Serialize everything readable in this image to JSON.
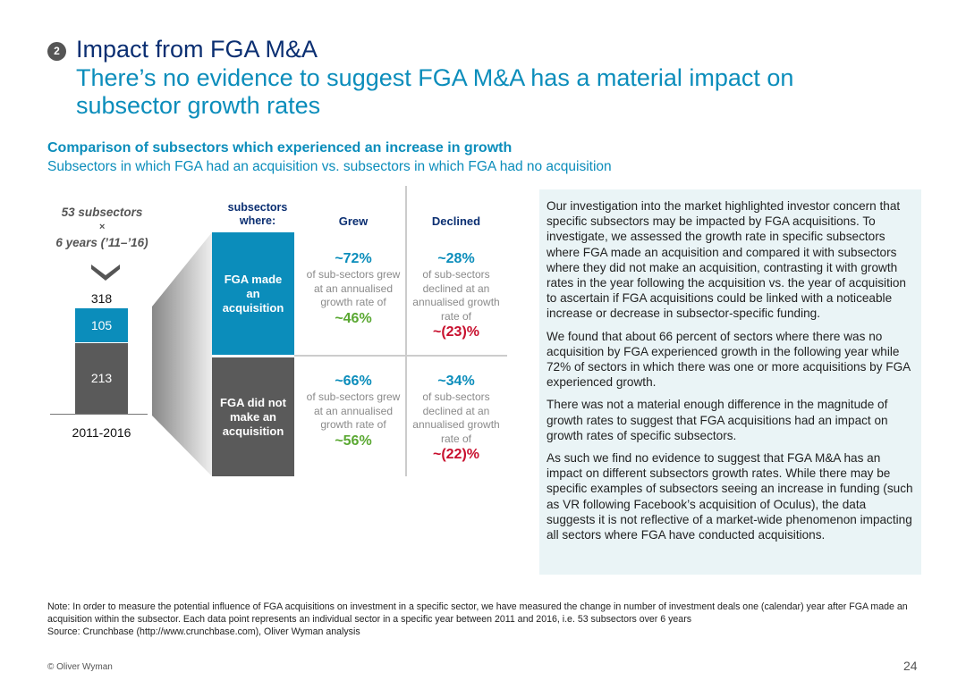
{
  "header": {
    "badge": "2",
    "title": "Impact from FGA M&A",
    "subtitle": "There’s no evidence to suggest FGA M&A has a material impact on subsector growth rates"
  },
  "section": {
    "title": "Comparison of subsectors which experienced an increase in growth",
    "subtitle": "Subsectors in which FGA had an acquisition vs. subsectors in which FGA had no acquisition"
  },
  "left": {
    "line1": "53 subsectors",
    "times": "×",
    "line2": "6 years (’11–’16)",
    "total": "318",
    "top_value": "105",
    "bottom_value": "213",
    "period": "2011-2016"
  },
  "chart_data": {
    "type": "bar",
    "categories": [
      "2011-2016"
    ],
    "series": [
      {
        "values": [
          213
        ]
      },
      {
        "values": [
          105
        ]
      }
    ],
    "total": 318,
    "stacked": true
  },
  "matrix": {
    "row_header": "subsectors where:",
    "col_grew": "Grew",
    "col_declined": "Declined",
    "row1": "FGA made an acquisition",
    "row2": "FGA did not make an acquisition",
    "cells": [
      {
        "pct": "~72%",
        "text": "of sub-sectors grew at an annualised growth rate of",
        "rate": "~46%"
      },
      {
        "pct": "~28%",
        "text": "of sub-sectors declined at an annualised growth rate of",
        "rate": "~(23)%"
      },
      {
        "pct": "~66%",
        "text": "of sub-sectors grew at an annualised growth rate of",
        "rate": "~56%"
      },
      {
        "pct": "~34%",
        "text": "of sub-sectors declined at an annualised growth rate of",
        "rate": "~(22)%"
      }
    ]
  },
  "panel": {
    "paragraphs": [
      "Our investigation into the market highlighted investor concern that specific subsectors may be impacted by FGA acquisitions. To investigate, we assessed the growth rate in specific subsectors where FGA made an acquisition and compared it with subsectors where they did not make an acquisition, contrasting it with growth rates in the year following the acquisition vs. the year of acquisition to ascertain if FGA acquisitions could be linked with a noticeable increase or decrease in subsector-specific funding.",
      "We found that about 66 percent of sectors where there was no acquisition by FGA experienced growth in the following year while 72% of sectors in which there was one or more acquisitions by FGA experienced growth.",
      "There was not a material enough difference in the magnitude of growth rates to suggest that FGA acquisitions had an impact on growth rates of specific subsectors.",
      "As such we find no evidence to suggest that FGA M&A has an impact on different subsectors growth rates. While there may be specific examples of subsectors seeing  an increase in funding (such as VR following Facebook’s acquisition of Oculus), the data suggests it is not reflective of a market-wide phenomenon impacting all sectors where FGA have conducted acquisitions."
    ]
  },
  "footer": {
    "note": "Note: In order to measure the potential influence of FGA acquisitions on investment in a specific sector, we have measured the change in number of investment deals one (calendar) year after FGA made an acquisition within the subsector. Each data point represents an individual sector in a specific year between 2011 and 2016, i.e. 53 subsectors over 6 years",
    "source": "Source: Crunchbase (http://www.crunchbase.com), Oliver Wyman analysis",
    "copyright": "© Oliver Wyman",
    "page": "24"
  },
  "colors": {
    "navy": "#0b2f72",
    "blue": "#0b8dbb",
    "green": "#5aa832",
    "red": "#c8102e",
    "dark": "#5a5a5a"
  }
}
